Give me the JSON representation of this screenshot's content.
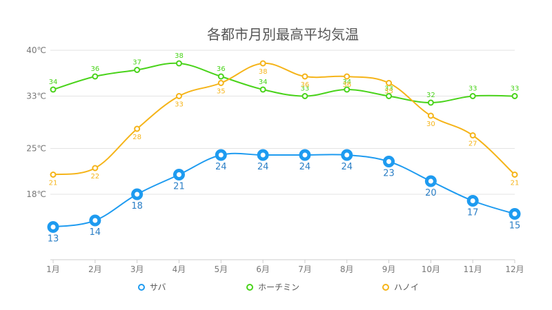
{
  "chart_data": {
    "type": "line",
    "title": "各都市月別最高平均気温",
    "categories": [
      "1月",
      "2月",
      "3月",
      "4月",
      "5月",
      "6月",
      "7月",
      "8月",
      "9月",
      "10月",
      "11月",
      "12月"
    ],
    "ylim": [
      8,
      40
    ],
    "y_ticks": [
      {
        "value": 40,
        "label": "40℃"
      },
      {
        "value": 33,
        "label": "33℃"
      },
      {
        "value": 25,
        "label": "25℃"
      },
      {
        "value": 18,
        "label": "18℃"
      }
    ],
    "grid": true,
    "legend": "bottom",
    "series": [
      {
        "name": "サバ",
        "color": "#1e9bf0",
        "values": [
          13,
          14,
          18,
          21,
          24,
          24,
          24,
          24,
          23,
          20,
          17,
          15
        ],
        "labels_below": true,
        "large": true
      },
      {
        "name": "ホーチミン",
        "color": "#49d31a",
        "values": [
          34,
          36,
          37,
          38,
          36,
          34,
          33,
          34,
          33,
          32,
          33,
          33
        ],
        "labels_below": false,
        "large": false
      },
      {
        "name": "ハノイ",
        "color": "#f5b419",
        "values": [
          21,
          22,
          28,
          33,
          35,
          38,
          36,
          36,
          35,
          30,
          27,
          21
        ],
        "labels_below": true,
        "large": false
      }
    ]
  }
}
